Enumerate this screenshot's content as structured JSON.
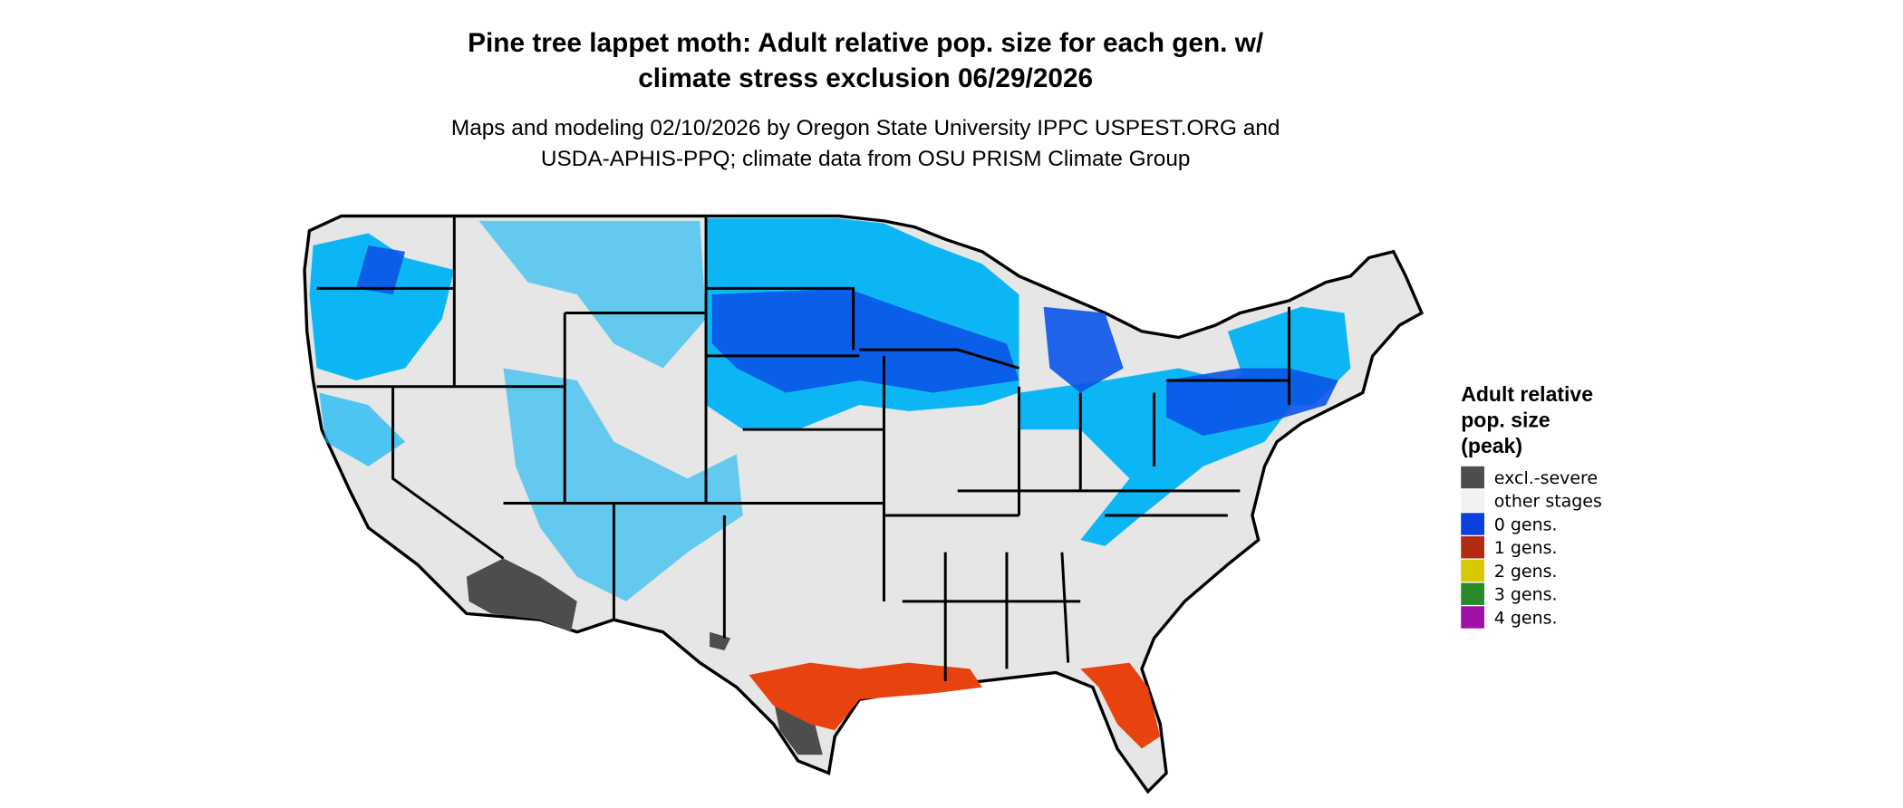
{
  "title": [
    "Pine tree lappet moth: Adult relative pop. size for each gen. w/",
    "climate stress exclusion 06/29/2026"
  ],
  "subtitle": [
    "Maps and modeling 02/10/2026 by Oregon State University IPPC USPEST.ORG and",
    "USDA-APHIS-PPQ; climate data from OSU PRISM Climate Group"
  ],
  "legend": {
    "title": [
      "Adult relative",
      "pop. size",
      "(peak)"
    ],
    "items": [
      {
        "label": "excl.-severe",
        "color": "#4d4d4d"
      },
      {
        "label": "other stages",
        "color": "#f2f2f2"
      },
      {
        "label": "0 gens.",
        "color": "#0a3fe0"
      },
      {
        "label": "1 gens.",
        "color": "#b02a14"
      },
      {
        "label": "2 gens.",
        "color": "#d8c800"
      },
      {
        "label": "3 gens.",
        "color": "#2a8a2a"
      },
      {
        "label": "4 gens.",
        "color": "#a010a8"
      }
    ]
  }
}
